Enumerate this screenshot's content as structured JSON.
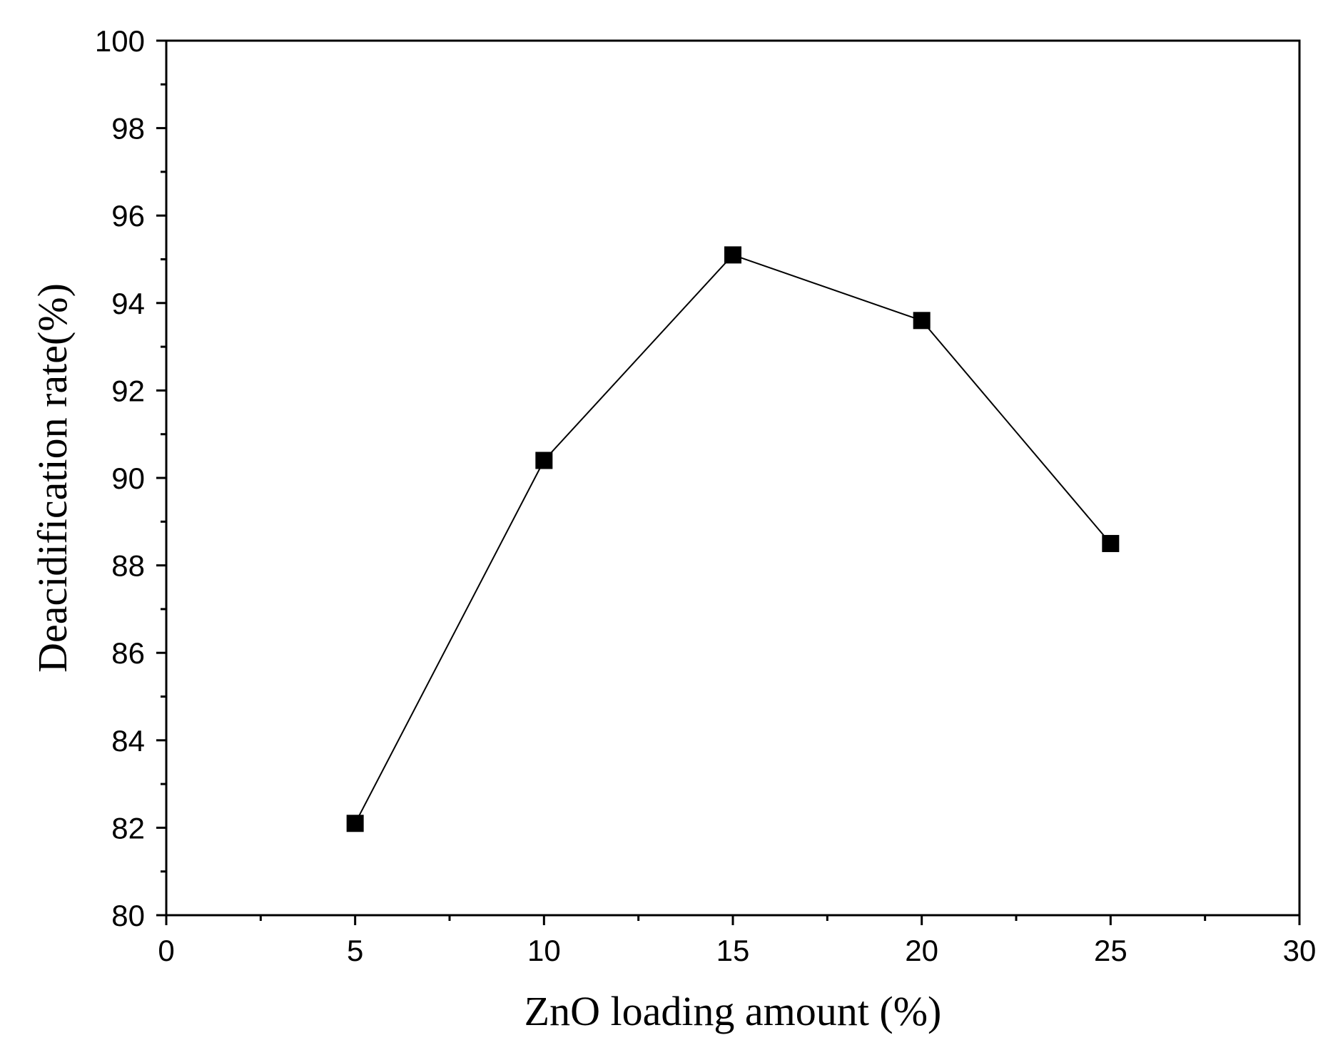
{
  "chart_data": {
    "type": "line",
    "xlabel": "ZnO loading amount (%)",
    "ylabel": "Deacidification rate(%)",
    "xlim": [
      0,
      30
    ],
    "ylim": [
      80,
      100
    ],
    "x_ticks": [
      0,
      5,
      10,
      15,
      20,
      25,
      30
    ],
    "y_ticks": [
      80,
      82,
      84,
      86,
      88,
      90,
      92,
      94,
      96,
      98,
      100
    ],
    "x_tick_labels": [
      "0",
      "5",
      "10",
      "15",
      "20",
      "25",
      "30"
    ],
    "y_tick_labels": [
      "80",
      "82",
      "84",
      "86",
      "88",
      "90",
      "92",
      "94",
      "96",
      "98",
      "100"
    ],
    "grid": false,
    "legend": "none",
    "marker": "square",
    "series": [
      {
        "x": [
          5,
          10,
          15,
          20,
          25
        ],
        "y": [
          82.1,
          90.4,
          95.1,
          93.6,
          88.5
        ],
        "color": "#000000"
      }
    ]
  }
}
